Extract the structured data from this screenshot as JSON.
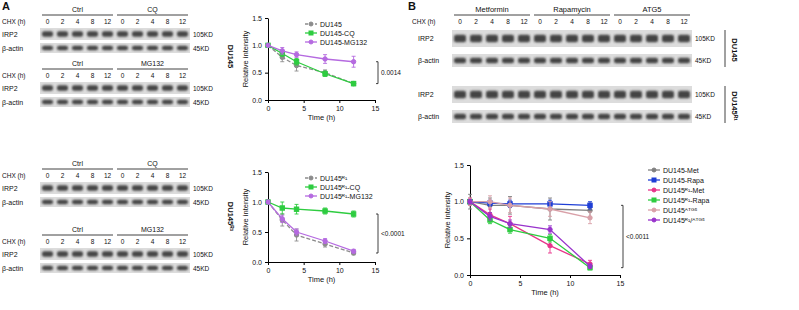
{
  "panel_labels": [
    "A",
    "B"
  ],
  "blots": [
    {
      "cell_line": "DU145",
      "chx_label": "CHX (h)",
      "times": [
        0,
        2,
        4,
        8,
        12
      ],
      "sections": [
        {
          "treatments": [
            "Ctrl",
            "CQ"
          ],
          "rows": [
            {
              "protein": "IRP2",
              "size": "105KD"
            },
            {
              "protein": "β-actin",
              "size": "45KD"
            }
          ]
        },
        {
          "treatments": [
            "Ctrl",
            "MG132"
          ],
          "rows": [
            {
              "protein": "IRP2",
              "size": "105KD"
            },
            {
              "protein": "β-actin",
              "size": "45KD"
            }
          ]
        }
      ]
    },
    {
      "cell_line": "DU145ᴿ¹",
      "chx_label": "CHX (h)",
      "times": [
        0,
        2,
        4,
        8,
        12
      ],
      "sections": [
        {
          "treatments": [
            "Ctrl",
            "CQ"
          ],
          "rows": [
            {
              "protein": "IRP2",
              "size": "105KD"
            },
            {
              "protein": "β-actin",
              "size": "45KD"
            }
          ]
        },
        {
          "treatments": [
            "Ctrl",
            "MG132"
          ],
          "rows": [
            {
              "protein": "IRP2",
              "size": "105KD"
            },
            {
              "protein": "β-actin",
              "size": "45KD"
            }
          ]
        }
      ]
    },
    {
      "chx_label": "CHX (h)",
      "times": [
        0,
        2,
        4,
        8,
        12
      ],
      "treatments": [
        "Metformin",
        "Rapamycin",
        "ATG5"
      ],
      "groups": [
        {
          "cell_line": "DU145",
          "rows": [
            {
              "protein": "IRP2",
              "size": "105KD"
            },
            {
              "protein": "β-actin",
              "size": "45KD"
            }
          ]
        },
        {
          "cell_line": "DU145ᴿ¹",
          "rows": [
            {
              "protein": "IRP2",
              "size": "105KD"
            },
            {
              "protein": "β-actin",
              "size": "45KD"
            }
          ]
        }
      ]
    }
  ],
  "chart_data": [
    {
      "type": "line",
      "x_label": "Time (h)",
      "y_label": "Relative intensity",
      "x": [
        0,
        2,
        4,
        8,
        12
      ],
      "xlim": [
        0,
        15
      ],
      "xticks": [
        0,
        5,
        10,
        15
      ],
      "ylim": [
        0,
        1.5
      ],
      "yticks": [
        {
          "value": 0,
          "label": "0.0"
        },
        {
          "value": 0.5,
          "label": "0.5"
        },
        {
          "value": 1,
          "label": "1.0"
        },
        {
          "value": 1.5,
          "label": "1.5"
        }
      ],
      "annotation": "0.0014",
      "series": [
        {
          "name": "DU145",
          "color": "#8c8c8c",
          "marker": "circle",
          "line_style": "dashed",
          "values": [
            1.0,
            0.78,
            0.63,
            0.5,
            0.3
          ],
          "errors": [
            0.03,
            0.08,
            0.1,
            0.05,
            0.03
          ]
        },
        {
          "name": "DU145-CQ",
          "color": "#2ecc40",
          "marker": "square",
          "line_style": "solid",
          "values": [
            1.0,
            0.85,
            0.7,
            0.48,
            0.3
          ],
          "errors": [
            0.02,
            0.05,
            0.06,
            0.05,
            0.04
          ]
        },
        {
          "name": "DU145-MG132",
          "color": "#b56ae0",
          "marker": "circle",
          "line_style": "solid",
          "values": [
            1.0,
            0.9,
            0.83,
            0.75,
            0.7
          ],
          "errors": [
            0.02,
            0.06,
            0.05,
            0.08,
            0.1
          ]
        }
      ]
    },
    {
      "type": "line",
      "x_label": "Time (h)",
      "y_label": "Relative intensity",
      "x": [
        0,
        2,
        4,
        8,
        12
      ],
      "xlim": [
        0,
        15
      ],
      "xticks": [
        0,
        5,
        10,
        15
      ],
      "ylim": [
        0,
        1.5
      ],
      "yticks": [
        {
          "value": 0,
          "label": "0.0"
        },
        {
          "value": 0.5,
          "label": "0.5"
        },
        {
          "value": 1,
          "label": "1.0"
        },
        {
          "value": 1.5,
          "label": "1.5"
        }
      ],
      "annotation": "<0.0001",
      "series": [
        {
          "name": "DU145ᴿ¹",
          "color": "#8c8c8c",
          "marker": "circle",
          "line_style": "dashed",
          "values": [
            1.0,
            0.7,
            0.45,
            0.3,
            0.15
          ],
          "errors": [
            0.03,
            0.1,
            0.1,
            0.05,
            0.03
          ]
        },
        {
          "name": "DU145ᴿ¹-CQ",
          "color": "#2ecc40",
          "marker": "square",
          "line_style": "solid",
          "values": [
            1.0,
            0.9,
            0.88,
            0.85,
            0.8
          ],
          "errors": [
            0.03,
            0.1,
            0.08,
            0.05,
            0.05
          ]
        },
        {
          "name": "DU145ᴿ¹-MG132",
          "color": "#b56ae0",
          "marker": "circle",
          "line_style": "solid",
          "values": [
            1.0,
            0.72,
            0.5,
            0.35,
            0.18
          ],
          "errors": [
            0.03,
            0.06,
            0.05,
            0.04,
            0.03
          ]
        }
      ]
    },
    {
      "type": "line",
      "x_label": "Time (h)",
      "y_label": "Relative intensity",
      "x": [
        0,
        2,
        4,
        8,
        12
      ],
      "xlim": [
        0,
        15
      ],
      "xticks": [
        0,
        5,
        10,
        15
      ],
      "ylim": [
        0,
        1.5
      ],
      "yticks": [
        {
          "value": 0,
          "label": "0.0"
        },
        {
          "value": 0.5,
          "label": "0.5"
        },
        {
          "value": 1,
          "label": "1.0"
        },
        {
          "value": 1.5,
          "label": "1.5"
        }
      ],
      "annotation": "<0.0011",
      "series": [
        {
          "name": "DU145-Met",
          "color": "#808080",
          "marker": "circle",
          "line_style": "solid",
          "values": [
            1.0,
            0.95,
            0.95,
            0.9,
            0.88
          ],
          "errors": [
            0.1,
            0.1,
            0.12,
            0.15,
            0.1
          ]
        },
        {
          "name": "DU145-Rapa",
          "color": "#1f3fd6",
          "marker": "square",
          "line_style": "solid",
          "values": [
            1.0,
            0.98,
            0.97,
            0.97,
            0.95
          ],
          "errors": [
            0.02,
            0.04,
            0.05,
            0.05,
            0.05
          ]
        },
        {
          "name": "DU145ᴿ¹-Met",
          "color": "#e8348a",
          "marker": "circle",
          "line_style": "solid",
          "values": [
            1.0,
            0.82,
            0.7,
            0.4,
            0.15
          ],
          "errors": [
            0.05,
            0.08,
            0.1,
            0.1,
            0.05
          ]
        },
        {
          "name": "DU145ᴿ¹-Rapa",
          "color": "#2ecc40",
          "marker": "square",
          "line_style": "solid",
          "values": [
            1.0,
            0.75,
            0.62,
            0.5,
            0.1
          ],
          "errors": [
            0.03,
            0.05,
            0.05,
            0.05,
            0.03
          ]
        },
        {
          "name": "DU145ᴬᵀᴳ⁵",
          "color": "#d9a0a8",
          "marker": "circle",
          "line_style": "solid",
          "values": [
            1.0,
            1.0,
            0.95,
            0.9,
            0.78
          ],
          "errors": [
            0.05,
            0.08,
            0.1,
            0.1,
            0.08
          ]
        },
        {
          "name": "DU145ᴿ¹/ᴬᵀᴳ⁵",
          "color": "#9933cc",
          "marker": "circle",
          "line_style": "solid",
          "values": [
            1.0,
            0.8,
            0.7,
            0.62,
            0.12
          ],
          "errors": [
            0.03,
            0.05,
            0.05,
            0.05,
            0.03
          ]
        }
      ]
    }
  ]
}
